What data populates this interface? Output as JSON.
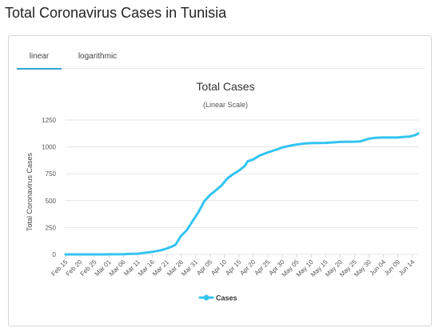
{
  "page": {
    "title": "Total Coronavirus Cases in Tunisia"
  },
  "tabs": [
    {
      "label": "linear",
      "active": true
    },
    {
      "label": "logarithmic",
      "active": false
    }
  ],
  "colors": {
    "series": "#33c4f0",
    "tab_active": "#2ea7d8",
    "grid": "#e6e6e6"
  },
  "chart_data": {
    "type": "line",
    "title": "Total Cases",
    "subtitle": "(Linear Scale)",
    "xlabel": "",
    "ylabel": "Total Coronavirus Cases",
    "ylim": [
      0,
      1250
    ],
    "yticks": [
      0,
      250,
      500,
      750,
      1000,
      1250
    ],
    "grid": true,
    "legend": "bottom-center",
    "xtick_labels": [
      "Feb 15",
      "Feb 20",
      "Feb 25",
      "Mar 01",
      "Mar 06",
      "Mar 11",
      "Mar 16",
      "Mar 21",
      "Mar 26",
      "Mar 31",
      "Apr 05",
      "Apr 10",
      "Apr 15",
      "Apr 20",
      "Apr 25",
      "Apr 30",
      "May 05",
      "May 10",
      "May 15",
      "May 20",
      "May 25",
      "May 30",
      "Jun 04",
      "Jun 09",
      "Jun 14"
    ],
    "x": [
      "Feb 15",
      "Feb 20",
      "Feb 25",
      "Mar 01",
      "Mar 06",
      "Mar 09",
      "Mar 11",
      "Mar 14",
      "Mar 16",
      "Mar 19",
      "Mar 21",
      "Mar 23",
      "Mar 24",
      "Mar 26",
      "Mar 28",
      "Mar 30",
      "Apr 01",
      "Apr 03",
      "Apr 05",
      "Apr 07",
      "Apr 09",
      "Apr 11",
      "Apr 13",
      "Apr 15",
      "Apr 17",
      "Apr 18",
      "Apr 20",
      "Apr 22",
      "Apr 25",
      "Apr 28",
      "Apr 30",
      "May 03",
      "May 05",
      "May 08",
      "May 10",
      "May 15",
      "May 20",
      "May 25",
      "May 27",
      "May 30",
      "Jun 01",
      "Jun 04",
      "Jun 09",
      "Jun 11",
      "Jun 13",
      "Jun 15",
      "Jun 16"
    ],
    "series": [
      {
        "name": "Cases",
        "values": [
          0,
          0,
          0,
          1,
          2,
          5,
          7,
          16,
          24,
          39,
          54,
          75,
          89,
          173,
          227,
          312,
          395,
          495,
          553,
          596,
          643,
          707,
          747,
          780,
          822,
          866,
          884,
          918,
          949,
          975,
          995,
          1013,
          1022,
          1032,
          1035,
          1037,
          1046,
          1048,
          1051,
          1077,
          1084,
          1087,
          1087,
          1093,
          1096,
          1110,
          1125
        ]
      }
    ]
  }
}
